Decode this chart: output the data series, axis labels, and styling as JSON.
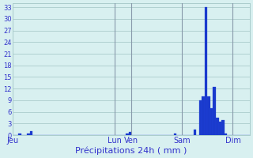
{
  "title": "Précipitations 24h ( mm )",
  "background_color": "#d8f0f0",
  "grid_color": "#aacccc",
  "bar_color": "#1a3acc",
  "bar_edge_color": "#2244dd",
  "ylim": [
    0,
    34
  ],
  "yticks": [
    0,
    3,
    6,
    9,
    12,
    15,
    18,
    21,
    24,
    27,
    30,
    33
  ],
  "tick_color": "#3333cc",
  "num_bars": 84,
  "bar_values": [
    0,
    0,
    0.5,
    0,
    0,
    0.5,
    1,
    0,
    0,
    0,
    0,
    0,
    0,
    0,
    0,
    0,
    0,
    0,
    0,
    0,
    0,
    0,
    0,
    0,
    0,
    0,
    0,
    0,
    0,
    0,
    0,
    0,
    0,
    0,
    0,
    0,
    0,
    0,
    0,
    0,
    0.5,
    0.8,
    0,
    0,
    0,
    0,
    0,
    0,
    0,
    0,
    0,
    0,
    0,
    0,
    0,
    0,
    0,
    0.5,
    0,
    0,
    0,
    0,
    0,
    0,
    1.5,
    0,
    9,
    10,
    33,
    10,
    7,
    12.5,
    4.5,
    3.5,
    4,
    0.5,
    0,
    0,
    0,
    0,
    0,
    0,
    0,
    0
  ],
  "day_labels": [
    "Jeu",
    "Lun",
    "Ven",
    "Sam",
    "Dim"
  ],
  "day_positions": [
    0,
    36,
    42,
    60,
    78
  ]
}
